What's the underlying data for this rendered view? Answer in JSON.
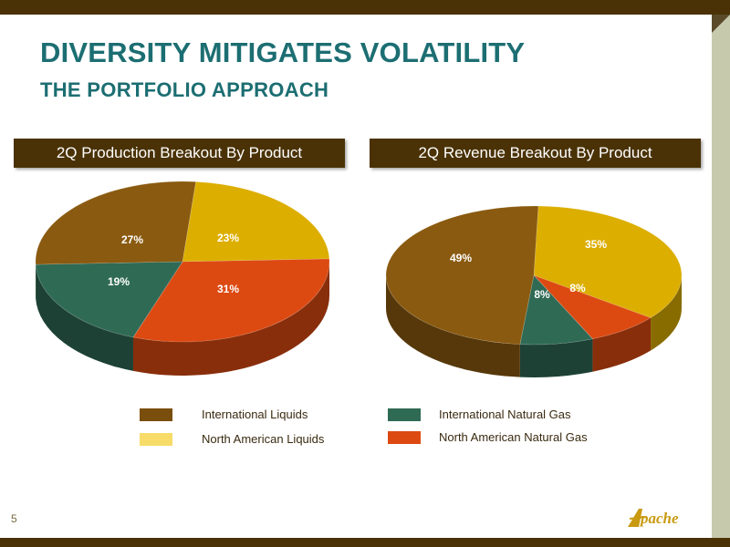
{
  "title": "DIVERSITY MITIGATES VOLATILITY",
  "subtitle": "THE PORTFOLIO APPROACH",
  "page_number": "5",
  "logo_text": "Apache",
  "colors": {
    "International Liquids": "#8a5a10",
    "North American Liquids": "#dcae00",
    "International Natural Gas": "#2f6a55",
    "North American Natural Gas": "#dc4a12"
  },
  "legend": [
    {
      "label": "International Liquids",
      "swatch": "#7a4e0c"
    },
    {
      "label": "North American Liquids",
      "swatch": "#f7dc6a"
    },
    {
      "label": "International Natural Gas",
      "swatch": "#2f6a55"
    },
    {
      "label": "North American Natural Gas",
      "swatch": "#dc4a12"
    }
  ],
  "chart_data": [
    {
      "type": "pie",
      "title": "2Q Production Breakout By Product",
      "slices": [
        {
          "label": "North American Liquids",
          "value": 23,
          "display": "23%"
        },
        {
          "label": "North American Natural Gas",
          "value": 31,
          "display": "31%"
        },
        {
          "label": "International Natural Gas",
          "value": 19,
          "display": "19%"
        },
        {
          "label": "International Liquids",
          "value": 27,
          "display": "27%"
        }
      ]
    },
    {
      "type": "pie",
      "title": "2Q Revenue Breakout By Product",
      "slices": [
        {
          "label": "North American Liquids",
          "value": 35,
          "display": "35%"
        },
        {
          "label": "North American Natural Gas",
          "value": 8,
          "display": "8%"
        },
        {
          "label": "International Natural Gas",
          "value": 8,
          "display": "8%"
        },
        {
          "label": "International Liquids",
          "value": 49,
          "display": "49%"
        }
      ]
    }
  ]
}
